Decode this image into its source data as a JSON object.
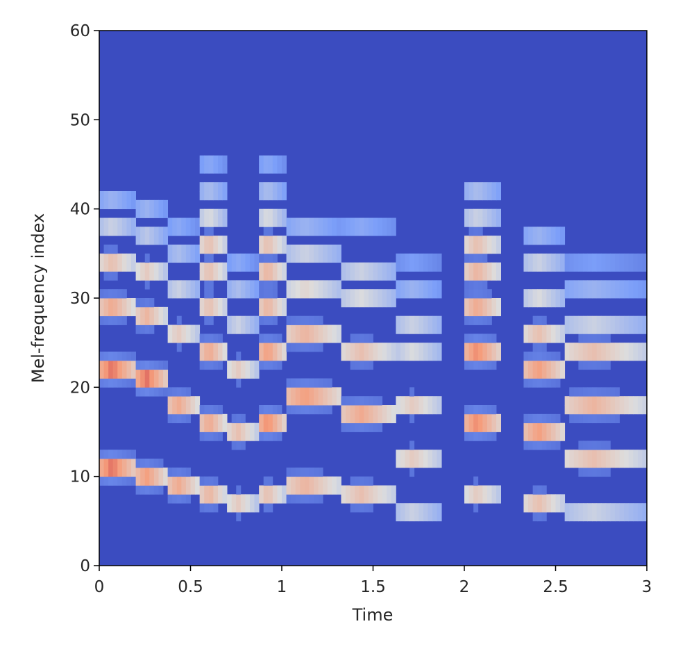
{
  "chart_data": {
    "type": "heatmap",
    "title": "",
    "xlabel": "Time",
    "ylabel": "Mel-frequency index",
    "xlim": [
      0,
      3
    ],
    "ylim": [
      0,
      60
    ],
    "xticks": [
      0,
      0.5,
      1,
      1.5,
      2,
      2.5,
      3
    ],
    "xtick_labels": [
      "0",
      "0.5",
      "1",
      "1.5",
      "2",
      "2.5",
      "3"
    ],
    "yticks": [
      0,
      10,
      20,
      30,
      40,
      50,
      60
    ],
    "ytick_labels": [
      "0",
      "10",
      "20",
      "30",
      "40",
      "50",
      "60"
    ],
    "colormap": "coolwarm",
    "background_color": "#3b4cc0",
    "grid": false,
    "note_segments": [
      {
        "t0": 0.0,
        "t1": 0.2,
        "f0": 11,
        "bands": [
          [
            11,
            1.0
          ],
          [
            22,
            1.0
          ],
          [
            29,
            0.85
          ],
          [
            34,
            0.75
          ],
          [
            38,
            0.55
          ],
          [
            41,
            0.4
          ]
        ]
      },
      {
        "t0": 0.2,
        "t1": 0.37,
        "f0": 10,
        "bands": [
          [
            10,
            0.9
          ],
          [
            21,
            1.0
          ],
          [
            28,
            0.8
          ],
          [
            33,
            0.7
          ],
          [
            37,
            0.5
          ],
          [
            40,
            0.4
          ]
        ]
      },
      {
        "t0": 0.37,
        "t1": 0.55,
        "f0": 9,
        "bands": [
          [
            9,
            0.85
          ],
          [
            18,
            0.85
          ],
          [
            26,
            0.7
          ],
          [
            31,
            0.55
          ],
          [
            35,
            0.45
          ],
          [
            38,
            0.35
          ]
        ]
      },
      {
        "t0": 0.55,
        "t1": 0.7,
        "f0": 8,
        "bands": [
          [
            8,
            0.8
          ],
          [
            16,
            0.85
          ],
          [
            24,
            0.85
          ],
          [
            29,
            0.75
          ],
          [
            33,
            0.75
          ],
          [
            36,
            0.75
          ],
          [
            39,
            0.6
          ],
          [
            42,
            0.45
          ],
          [
            45,
            0.35
          ]
        ]
      },
      {
        "t0": 0.7,
        "t1": 0.87,
        "f0": 7,
        "bands": [
          [
            7,
            0.7
          ],
          [
            15,
            0.75
          ],
          [
            22,
            0.7
          ],
          [
            27,
            0.55
          ],
          [
            31,
            0.45
          ],
          [
            34,
            0.35
          ]
        ]
      },
      {
        "t0": 0.87,
        "t1": 1.02,
        "f0": 8,
        "bands": [
          [
            8,
            0.75
          ],
          [
            16,
            0.95
          ],
          [
            24,
            0.9
          ],
          [
            29,
            0.8
          ],
          [
            33,
            0.8
          ],
          [
            36,
            0.75
          ],
          [
            39,
            0.6
          ],
          [
            42,
            0.45
          ],
          [
            45,
            0.35
          ]
        ]
      },
      {
        "t0": 1.02,
        "t1": 1.33,
        "f0": 9,
        "bands": [
          [
            9,
            0.8
          ],
          [
            19,
            0.9
          ],
          [
            26,
            0.8
          ],
          [
            31,
            0.65
          ],
          [
            35,
            0.55
          ],
          [
            38,
            0.4
          ]
        ]
      },
      {
        "t0": 1.33,
        "t1": 1.63,
        "f0": 8,
        "bands": [
          [
            8,
            0.75
          ],
          [
            17,
            0.85
          ],
          [
            24,
            0.75
          ],
          [
            30,
            0.6
          ],
          [
            33,
            0.55
          ],
          [
            38,
            0.35
          ]
        ]
      },
      {
        "t0": 1.63,
        "t1": 1.88,
        "f0": 6,
        "bands": [
          [
            6,
            0.55
          ],
          [
            12,
            0.7
          ],
          [
            18,
            0.7
          ],
          [
            24,
            0.6
          ],
          [
            27,
            0.55
          ],
          [
            31,
            0.4
          ],
          [
            34,
            0.3
          ]
        ]
      },
      {
        "t0": 2.0,
        "t1": 2.2,
        "f0": 8,
        "bands": [
          [
            8,
            0.7
          ],
          [
            16,
            0.95
          ],
          [
            24,
            0.95
          ],
          [
            29,
            0.85
          ],
          [
            33,
            0.8
          ],
          [
            36,
            0.75
          ],
          [
            39,
            0.55
          ],
          [
            42,
            0.45
          ]
        ]
      },
      {
        "t0": 2.33,
        "t1": 2.55,
        "f0": 7,
        "bands": [
          [
            7,
            0.75
          ],
          [
            15,
            0.9
          ],
          [
            22,
            0.9
          ],
          [
            26,
            0.75
          ],
          [
            30,
            0.6
          ],
          [
            34,
            0.55
          ],
          [
            37,
            0.4
          ]
        ]
      },
      {
        "t0": 2.55,
        "t1": 3.0,
        "f0": 6,
        "bands": [
          [
            6,
            0.55
          ],
          [
            12,
            0.75
          ],
          [
            18,
            0.8
          ],
          [
            24,
            0.75
          ],
          [
            27,
            0.55
          ],
          [
            31,
            0.4
          ],
          [
            34,
            0.3
          ]
        ]
      }
    ]
  }
}
